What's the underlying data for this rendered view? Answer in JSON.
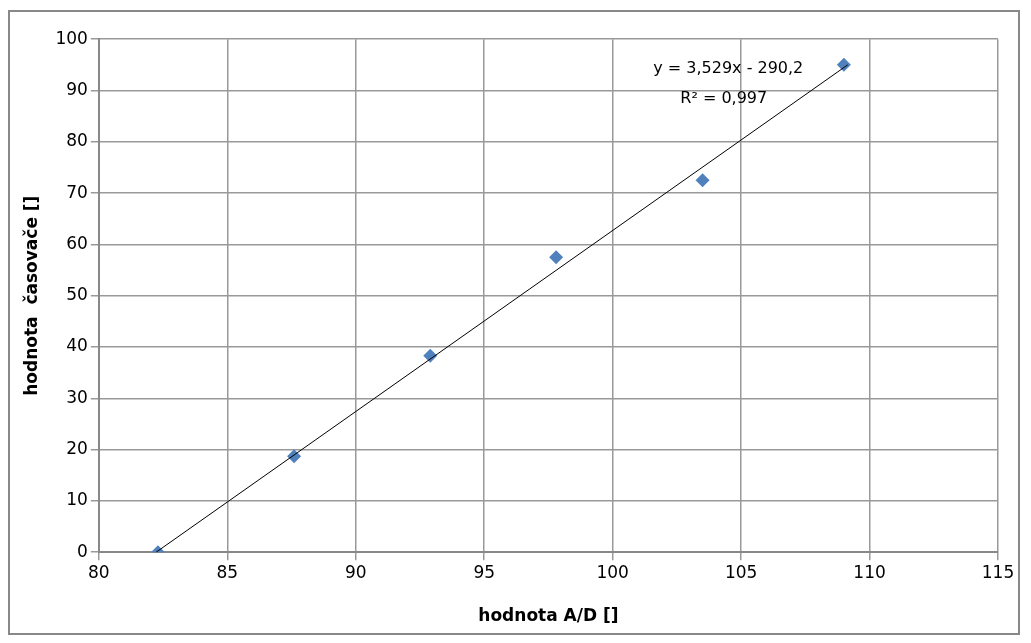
{
  "chart_data": {
    "type": "scatter",
    "xlabel": "hodnota A/D []",
    "ylabel": "hodnota  časovače []",
    "x": [
      82.3,
      87.6,
      92.9,
      97.8,
      103.5,
      109
    ],
    "series": [
      {
        "color": "#4f81bd",
        "marker": "diamond",
        "values": [
          0,
          18.7,
          38.3,
          57.5,
          72.5,
          95
        ]
      },
      {
        "type": "line",
        "color": "#000000",
        "marker": "none",
        "x": [
          82.23,
          109.15
        ],
        "values": [
          0,
          95
        ]
      }
    ],
    "xlim": [
      80,
      115
    ],
    "xticks": [
      80,
      85,
      90,
      95,
      100,
      105,
      110,
      115
    ],
    "ylim": [
      0,
      100
    ],
    "yticks": [
      0,
      10,
      20,
      30,
      40,
      50,
      60,
      70,
      80,
      90,
      100
    ],
    "grid": true,
    "legend": false,
    "annotations": [
      "y = 3,529x - 290,2",
      "R² = 0,997"
    ]
  }
}
